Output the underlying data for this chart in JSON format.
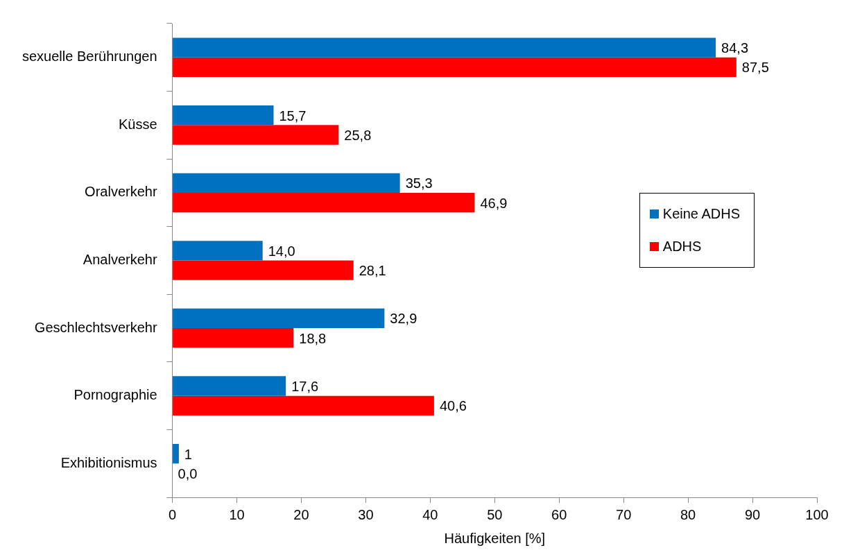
{
  "chart_data": {
    "type": "bar",
    "orientation": "horizontal",
    "xlabel": "Häufigkeiten [%]",
    "categories": [
      "sexuelle Berührungen",
      "Küsse",
      "Oralverkehr",
      "Analverkehr",
      "Geschlechtsverkehr",
      "Pornographie",
      "Exhibitionismus"
    ],
    "series": [
      {
        "name": "Keine ADHS",
        "color": "#0070c0",
        "values": [
          84.3,
          15.7,
          35.3,
          14.0,
          32.9,
          17.6,
          1
        ],
        "value_labels": [
          "84,3",
          "15,7",
          "35,3",
          "14,0",
          "32,9",
          "17,6",
          "1"
        ]
      },
      {
        "name": "ADHS",
        "color": "#ff0000",
        "values": [
          87.5,
          25.8,
          46.9,
          28.1,
          18.8,
          40.6,
          0
        ],
        "value_labels": [
          "87,5",
          "25,8",
          "46,9",
          "28,1",
          "18,8",
          "40,6",
          "0,0"
        ]
      }
    ],
    "xlim": [
      0,
      100
    ],
    "xticks": [
      0,
      10,
      20,
      30,
      40,
      50,
      60,
      70,
      80,
      90,
      100
    ],
    "grid": false,
    "legend": "right"
  }
}
